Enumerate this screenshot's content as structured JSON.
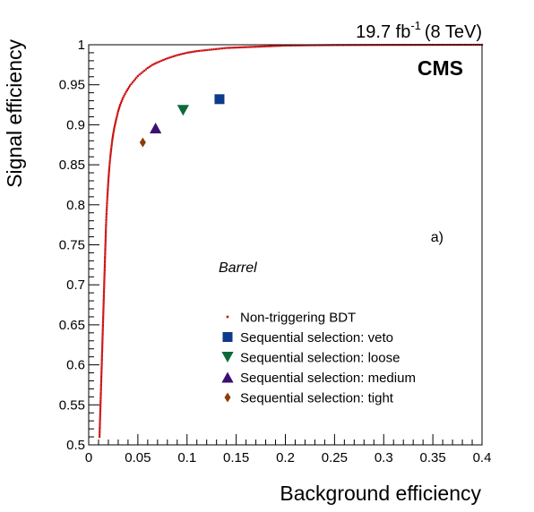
{
  "chart_data": {
    "type": "scatter",
    "title": "",
    "luminosity": {
      "value": "19.7 fb",
      "exponent": "-1",
      "energy": "(8 TeV)"
    },
    "experiment_label": "CMS",
    "panel_label": "a)",
    "region_label": "Barrel",
    "xlabel": "Background efficiency",
    "ylabel": "Signal efficiency",
    "xlim": [
      0,
      0.4
    ],
    "ylim": [
      0.5,
      1.0
    ],
    "x_ticks": [
      {
        "value": 0,
        "label": "0"
      },
      {
        "value": 0.05,
        "label": "0.05"
      },
      {
        "value": 0.1,
        "label": "0.1"
      },
      {
        "value": 0.15,
        "label": "0.15"
      },
      {
        "value": 0.2,
        "label": "0.2"
      },
      {
        "value": 0.25,
        "label": "0.25"
      },
      {
        "value": 0.3,
        "label": "0.3"
      },
      {
        "value": 0.35,
        "label": "0.35"
      },
      {
        "value": 0.4,
        "label": "0.4"
      }
    ],
    "y_ticks": [
      {
        "value": 0.5,
        "label": "0.5"
      },
      {
        "value": 0.55,
        "label": "0.55"
      },
      {
        "value": 0.6,
        "label": "0.6"
      },
      {
        "value": 0.65,
        "label": "0.65"
      },
      {
        "value": 0.7,
        "label": "0.7"
      },
      {
        "value": 0.75,
        "label": "0.75"
      },
      {
        "value": 0.8,
        "label": "0.8"
      },
      {
        "value": 0.85,
        "label": "0.85"
      },
      {
        "value": 0.9,
        "label": "0.9"
      },
      {
        "value": 0.95,
        "label": "0.95"
      },
      {
        "value": 1.0,
        "label": "1"
      }
    ],
    "grid": false,
    "legend_position": "lower-center",
    "series": [
      {
        "name": "Non-triggering BDT",
        "marker": "dots",
        "color": "#cc1111",
        "x": [
          0.011,
          0.0115,
          0.012,
          0.0125,
          0.013,
          0.0135,
          0.014,
          0.0145,
          0.015,
          0.0155,
          0.016,
          0.0165,
          0.017,
          0.0175,
          0.018,
          0.019,
          0.02,
          0.021,
          0.022,
          0.023,
          0.024,
          0.025,
          0.026,
          0.028,
          0.03,
          0.032,
          0.035,
          0.038,
          0.042,
          0.046,
          0.05,
          0.055,
          0.06,
          0.065,
          0.07,
          0.08,
          0.09,
          0.1,
          0.11,
          0.125,
          0.14,
          0.16,
          0.18,
          0.2,
          0.22,
          0.25,
          0.3,
          0.35,
          0.4
        ],
        "y": [
          0.51,
          0.53,
          0.55,
          0.57,
          0.59,
          0.61,
          0.63,
          0.65,
          0.67,
          0.69,
          0.71,
          0.73,
          0.75,
          0.77,
          0.786,
          0.81,
          0.83,
          0.847,
          0.86,
          0.871,
          0.881,
          0.889,
          0.896,
          0.907,
          0.917,
          0.925,
          0.934,
          0.941,
          0.949,
          0.955,
          0.961,
          0.966,
          0.971,
          0.975,
          0.978,
          0.983,
          0.987,
          0.99,
          0.992,
          0.994,
          0.996,
          0.997,
          0.998,
          0.999,
          0.9993,
          0.9996,
          0.9998,
          0.9999,
          1.0
        ]
      },
      {
        "name": "Sequential selection: veto",
        "marker": "square",
        "color": "#0d3a8a",
        "x": [
          0.133
        ],
        "y": [
          0.932
        ]
      },
      {
        "name": "Sequential selection: loose",
        "marker": "triangle-down",
        "color": "#0a6b3a",
        "x": [
          0.096
        ],
        "y": [
          0.918
        ]
      },
      {
        "name": "Sequential selection: medium",
        "marker": "triangle-up",
        "color": "#3b1070",
        "x": [
          0.068
        ],
        "y": [
          0.896
        ]
      },
      {
        "name": "Sequential selection: tight",
        "marker": "diamond",
        "color": "#8a3e0a",
        "x": [
          0.055
        ],
        "y": [
          0.878
        ]
      }
    ]
  }
}
